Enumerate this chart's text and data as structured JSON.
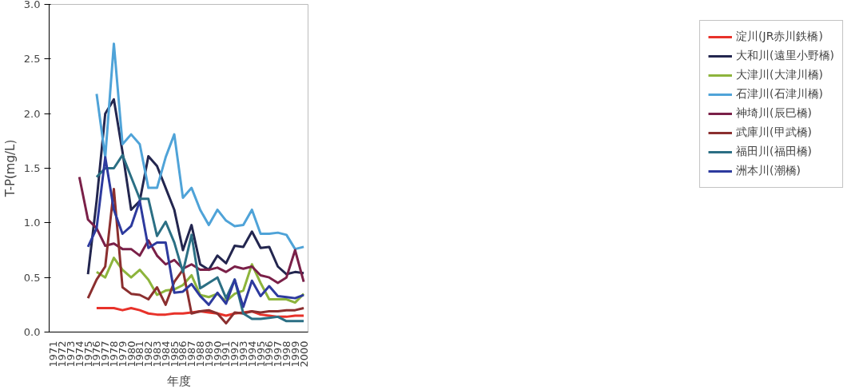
{
  "chart_data": {
    "type": "line",
    "xlabel": "年度",
    "ylabel": "T-P(mg/L)",
    "categories": [
      "1971",
      "1972",
      "1973",
      "1974",
      "1975",
      "1976",
      "1977",
      "1978",
      "1979",
      "1980",
      "1981",
      "1982",
      "1983",
      "1984",
      "1985",
      "1986",
      "1987",
      "1988",
      "1989",
      "1990",
      "1991",
      "1992",
      "1993",
      "1994",
      "1995",
      "1996",
      "1997",
      "1998",
      "1999",
      "2000"
    ],
    "ylim": [
      0,
      3
    ],
    "yticks": [
      {
        "value": 0,
        "label": "0.0"
      },
      {
        "value": 0.5,
        "label": "0.5"
      },
      {
        "value": 1,
        "label": "1.0"
      },
      {
        "value": 1.5,
        "label": "1.5"
      },
      {
        "value": 2,
        "label": "2.0"
      },
      {
        "value": 2.5,
        "label": "2.5"
      },
      {
        "value": 3,
        "label": "3.0"
      }
    ],
    "grid": false,
    "legend": "right",
    "line_style": "solid",
    "marker": "none",
    "series": [
      {
        "name": "淀川(JR赤川鉄橋)",
        "color": "#e8322a",
        "values": [
          null,
          null,
          null,
          null,
          null,
          0.22,
          0.22,
          0.22,
          0.2,
          0.22,
          0.2,
          0.17,
          0.16,
          0.16,
          0.17,
          0.17,
          0.18,
          0.19,
          0.18,
          0.17,
          0.15,
          0.17,
          0.18,
          0.19,
          0.16,
          0.15,
          0.14,
          0.14,
          0.15,
          0.15
        ]
      },
      {
        "name": "大和川(遠里小野橋)",
        "color": "#23264f",
        "values": [
          null,
          null,
          null,
          null,
          0.53,
          1.2,
          2.0,
          2.13,
          1.65,
          1.12,
          1.2,
          1.61,
          1.52,
          1.32,
          1.12,
          0.75,
          0.98,
          0.62,
          0.57,
          0.7,
          0.63,
          0.79,
          0.78,
          0.92,
          0.77,
          0.78,
          0.6,
          0.53,
          0.55,
          0.54
        ]
      },
      {
        "name": "大津川(大津川橋)",
        "color": "#8db43c",
        "values": [
          null,
          null,
          null,
          null,
          null,
          0.55,
          0.5,
          0.68,
          0.57,
          0.5,
          0.57,
          0.48,
          0.34,
          0.38,
          0.39,
          0.43,
          0.52,
          0.34,
          0.32,
          0.35,
          0.28,
          0.35,
          0.38,
          0.62,
          0.45,
          0.3,
          0.3,
          0.3,
          0.27,
          0.35
        ]
      },
      {
        "name": "石津川(石津川橋)",
        "color": "#4fa3d8",
        "values": [
          null,
          null,
          null,
          null,
          null,
          2.18,
          1.6,
          2.64,
          1.72,
          1.81,
          1.72,
          1.32,
          1.32,
          1.6,
          1.81,
          1.23,
          1.32,
          1.12,
          0.98,
          1.12,
          1.02,
          0.97,
          0.98,
          1.12,
          0.9,
          0.9,
          0.91,
          0.89,
          0.76,
          0.78
        ]
      },
      {
        "name": "神埼川(辰巳橋)",
        "color": "#7a2048",
        "values": [
          null,
          null,
          null,
          1.42,
          1.03,
          0.95,
          0.79,
          0.81,
          0.76,
          0.76,
          0.7,
          0.84,
          0.7,
          0.62,
          0.66,
          0.58,
          0.62,
          0.57,
          0.57,
          0.59,
          0.55,
          0.6,
          0.58,
          0.6,
          0.52,
          0.5,
          0.45,
          0.5,
          0.75,
          0.46
        ]
      },
      {
        "name": "武庫川(甲武橋)",
        "color": "#8b2f2f",
        "values": [
          null,
          null,
          null,
          null,
          0.31,
          0.48,
          0.6,
          1.31,
          0.41,
          0.35,
          0.34,
          0.3,
          0.41,
          0.25,
          0.46,
          0.57,
          0.17,
          0.19,
          0.2,
          0.17,
          0.08,
          0.18,
          0.17,
          0.19,
          0.18,
          0.19,
          0.19,
          0.2,
          0.2,
          0.22
        ]
      },
      {
        "name": "福田川(福田橋)",
        "color": "#2b6f84",
        "values": [
          null,
          null,
          null,
          null,
          null,
          1.42,
          1.5,
          1.5,
          1.62,
          1.42,
          1.22,
          1.22,
          0.88,
          1.01,
          0.82,
          0.55,
          0.89,
          0.4,
          0.45,
          0.5,
          0.31,
          0.48,
          0.17,
          0.12,
          0.12,
          0.13,
          0.14,
          0.1,
          0.1,
          0.1
        ]
      },
      {
        "name": "洲本川(潮橋)",
        "color": "#2d3a9e",
        "values": [
          null,
          null,
          null,
          null,
          0.78,
          0.95,
          1.6,
          1.12,
          0.9,
          0.97,
          1.2,
          0.77,
          0.82,
          0.82,
          0.36,
          0.37,
          0.44,
          0.33,
          0.25,
          0.36,
          0.26,
          0.48,
          0.23,
          0.47,
          0.33,
          0.42,
          0.33,
          0.32,
          0.31,
          0.34
        ]
      }
    ]
  }
}
